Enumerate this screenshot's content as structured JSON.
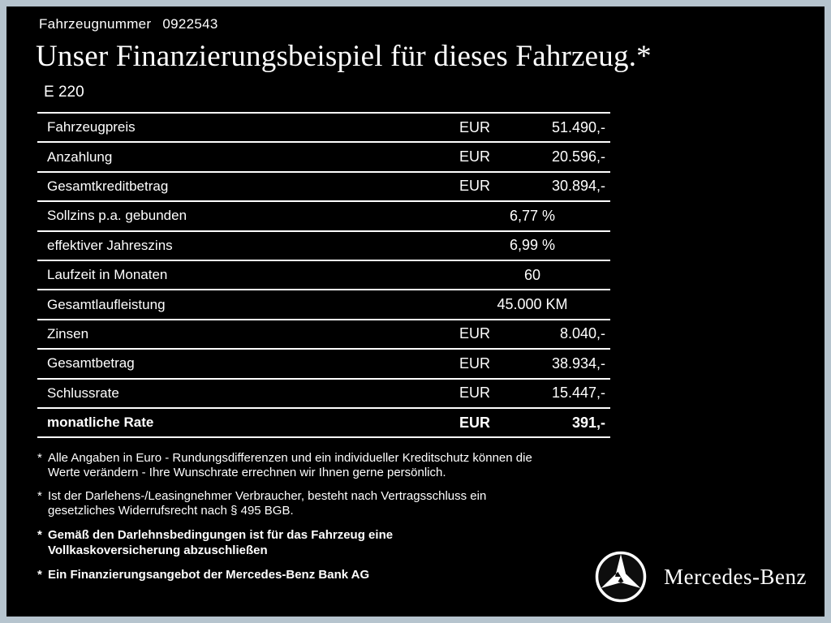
{
  "header": {
    "vehicle_number_label": "Fahrzeugnummer",
    "vehicle_number": "0922543",
    "title": "Unser Finanzierungsbeispiel für dieses Fahrzeug.*",
    "model": "E 220"
  },
  "table": {
    "rows": [
      {
        "label": "Fahrzeugpreis",
        "currency": "EUR",
        "value": "51.490,-",
        "bold": false
      },
      {
        "label": "Anzahlung",
        "currency": "EUR",
        "value": "20.596,-",
        "bold": false
      },
      {
        "label": "Gesamtkreditbetrag",
        "currency": "EUR",
        "value": "30.894,-",
        "bold": false
      },
      {
        "label": "Sollzins p.a. gebunden",
        "currency": "",
        "value": "6,77 %",
        "bold": false
      },
      {
        "label": "effektiver Jahreszins",
        "currency": "",
        "value": "6,99 %",
        "bold": false
      },
      {
        "label": "Laufzeit in Monaten",
        "currency": "",
        "value": "60",
        "bold": false
      },
      {
        "label": "Gesamtlaufleistung",
        "currency": "",
        "value": "45.000 KM",
        "bold": false
      },
      {
        "label": "Zinsen",
        "currency": "EUR",
        "value": "8.040,-",
        "bold": false
      },
      {
        "label": "Gesamtbetrag",
        "currency": "EUR",
        "value": "38.934,-",
        "bold": false
      },
      {
        "label": "Schlussrate",
        "currency": "EUR",
        "value": "15.447,-",
        "bold": false
      },
      {
        "label": "monatliche Rate",
        "currency": "EUR",
        "value": "391,-",
        "bold": true
      }
    ]
  },
  "footnotes": [
    {
      "marker": "*",
      "bold": false,
      "text": "Alle Angaben in Euro - Rundungsdifferenzen und ein individueller Kreditschutz können die\nWerte verändern - Ihre Wunschrate errechnen wir Ihnen gerne persönlich."
    },
    {
      "marker": "*",
      "bold": false,
      "text": "Ist der Darlehens-/Leasingnehmer Verbraucher, besteht nach Vertragsschluss ein\ngesetzliches Widerrufsrecht nach § 495 BGB."
    },
    {
      "marker": "*",
      "bold": true,
      "text": "Gemäß den Darlehnsbedingungen ist für das Fahrzeug eine\nVollkaskoversicherung abzuschließen"
    },
    {
      "marker": "*",
      "bold": true,
      "text": "Ein Finanzierungsangebot der Mercedes-Benz Bank AG"
    }
  ],
  "brand": {
    "logo_icon": "mercedes-star-icon",
    "wordmark": "Mercedes-Benz"
  },
  "colors": {
    "background": "#000000",
    "frame": "#b6c4ce",
    "text": "#ffffff"
  }
}
